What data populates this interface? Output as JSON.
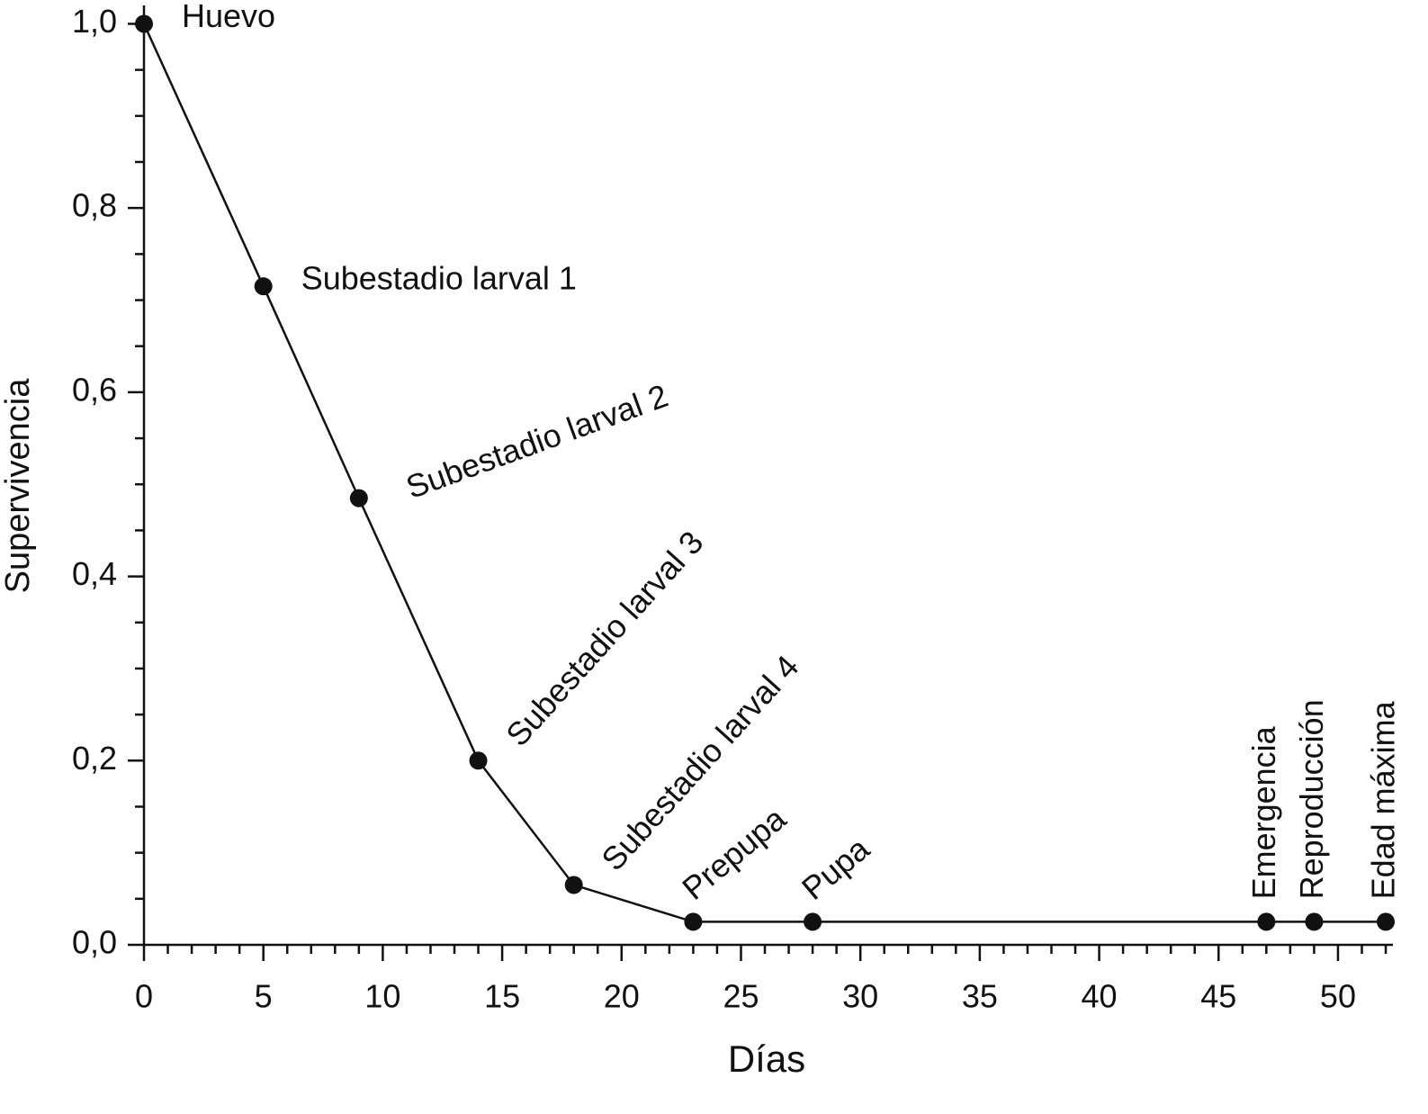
{
  "chart_data": {
    "type": "line",
    "x_label": "Días",
    "y_label": "Supervivencia",
    "x": [
      0,
      5,
      9,
      14,
      18,
      23,
      28,
      47,
      49,
      52
    ],
    "series": [
      {
        "color": "#111111",
        "values": [
          1.0,
          0.715,
          0.485,
          0.2,
          0.065,
          0.025,
          0.025,
          0.025,
          0.025,
          0.025
        ]
      }
    ],
    "point_labels": [
      "Huevo",
      "Subestadio larval 1",
      "Subestadio larval 2",
      "Subestadio larval 3",
      "Subestadio larval 4",
      "Prepupa",
      "Pupa",
      "Emergencia",
      "Reproducción",
      "Edad máxima"
    ],
    "xlim": [
      0,
      52.3
    ],
    "xticks": [
      0,
      5,
      10,
      15,
      20,
      25,
      30,
      35,
      40,
      45,
      50
    ],
    "ylim": [
      0,
      1.02
    ],
    "yticks": [
      {
        "value": 0,
        "label": "0,0"
      },
      {
        "value": 0.2,
        "label": "0,2"
      },
      {
        "value": 0.4,
        "label": "0,4"
      },
      {
        "value": 0.6,
        "label": "0,6"
      },
      {
        "value": 0.8,
        "label": "0,8"
      },
      {
        "value": 1.0,
        "label": "1,0"
      }
    ],
    "grid": false
  }
}
